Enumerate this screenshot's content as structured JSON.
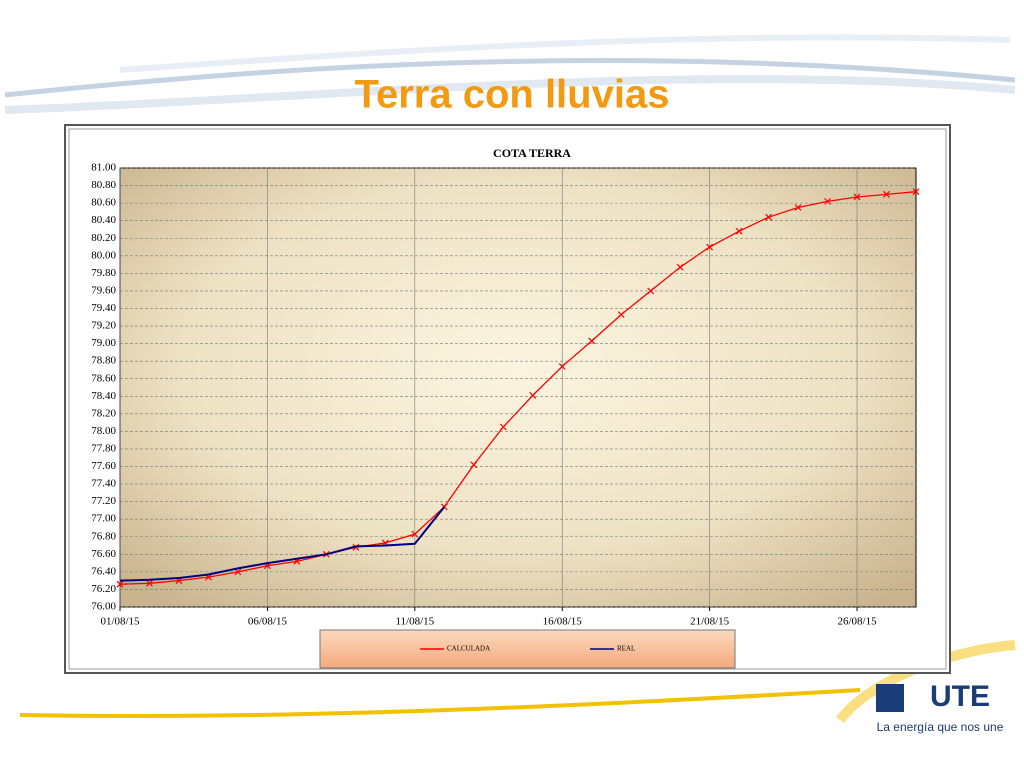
{
  "slide_title": "Terra con lluvias",
  "logo": {
    "name": "UTE",
    "tagline": "La energía que nos une"
  },
  "chart_data": {
    "type": "line",
    "title": "COTA TERRA",
    "x": [
      "2015-08-01",
      "2015-08-02",
      "2015-08-03",
      "2015-08-04",
      "2015-08-05",
      "2015-08-06",
      "2015-08-07",
      "2015-08-08",
      "2015-08-09",
      "2015-08-10",
      "2015-08-11",
      "2015-08-12",
      "2015-08-13",
      "2015-08-14",
      "2015-08-15",
      "2015-08-16",
      "2015-08-17",
      "2015-08-18",
      "2015-08-19",
      "2015-08-20",
      "2015-08-21",
      "2015-08-22",
      "2015-08-23",
      "2015-08-24",
      "2015-08-25",
      "2015-08-26",
      "2015-08-27",
      "2015-08-28"
    ],
    "series": [
      {
        "name": "CALCULADA",
        "color": "#ff0000",
        "marker": "x",
        "values": [
          76.26,
          76.27,
          76.3,
          76.34,
          76.4,
          76.47,
          76.52,
          76.6,
          76.68,
          76.73,
          76.83,
          77.14,
          77.62,
          78.05,
          78.41,
          78.74,
          79.03,
          79.33,
          79.6,
          79.87,
          80.1,
          80.28,
          80.44,
          80.55,
          80.62,
          80.67,
          80.7,
          80.73
        ]
      },
      {
        "name": "REAL",
        "color": "#000080",
        "values": [
          76.3,
          76.31,
          76.33,
          76.37,
          76.44,
          76.5,
          76.55,
          76.6,
          76.69,
          76.7,
          76.72,
          77.14,
          null,
          null,
          null,
          null,
          null,
          null,
          null,
          null,
          null,
          null,
          null,
          null,
          null,
          null,
          null,
          null
        ]
      }
    ],
    "xlim": [
      "2015-08-01",
      "2015-08-28"
    ],
    "xticks": [
      {
        "value": "2015-08-01",
        "label": "01/08/15"
      },
      {
        "value": "2015-08-06",
        "label": "06/08/15"
      },
      {
        "value": "2015-08-11",
        "label": "11/08/15"
      },
      {
        "value": "2015-08-16",
        "label": "16/08/15"
      },
      {
        "value": "2015-08-21",
        "label": "21/08/15"
      },
      {
        "value": "2015-08-26",
        "label": "26/08/15"
      }
    ],
    "ylim": [
      76,
      81
    ],
    "yticks": [
      {
        "value": 76,
        "label": "76.00"
      },
      {
        "value": 76.2,
        "label": "76.20"
      },
      {
        "value": 76.4,
        "label": "76.40"
      },
      {
        "value": 76.6,
        "label": "76.60"
      },
      {
        "value": 76.8,
        "label": "76.80"
      },
      {
        "value": 77,
        "label": "77.00"
      },
      {
        "value": 77.2,
        "label": "77.20"
      },
      {
        "value": 77.4,
        "label": "77.40"
      },
      {
        "value": 77.6,
        "label": "77.60"
      },
      {
        "value": 77.8,
        "label": "77.80"
      },
      {
        "value": 78,
        "label": "78.00"
      },
      {
        "value": 78.2,
        "label": "78.20"
      },
      {
        "value": 78.4,
        "label": "78.40"
      },
      {
        "value": 78.6,
        "label": "78.60"
      },
      {
        "value": 78.8,
        "label": "78.80"
      },
      {
        "value": 79,
        "label": "79.00"
      },
      {
        "value": 79.2,
        "label": "79.20"
      },
      {
        "value": 79.4,
        "label": "79.40"
      },
      {
        "value": 79.6,
        "label": "79.60"
      },
      {
        "value": 79.8,
        "label": "79.80"
      },
      {
        "value": 80,
        "label": "80.00"
      },
      {
        "value": 80.2,
        "label": "80.20"
      },
      {
        "value": 80.4,
        "label": "80.40"
      },
      {
        "value": 80.6,
        "label": "80.60"
      },
      {
        "value": 80.8,
        "label": "80.80"
      },
      {
        "value": 81,
        "label": "81.00"
      }
    ],
    "grid": true,
    "legend": "bottom"
  }
}
